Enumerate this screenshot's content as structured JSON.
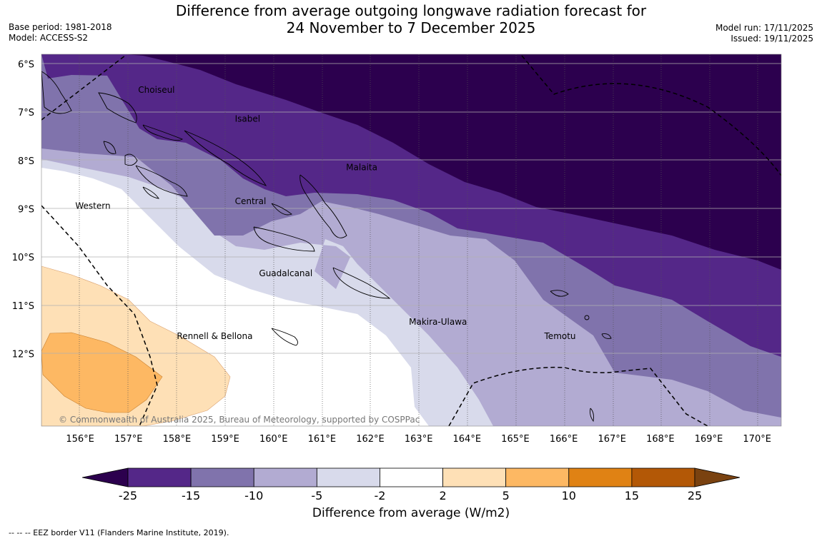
{
  "title_line1": "Difference from average outgoing longwave radiation forecast for",
  "title_line2": "24 November to 7 December 2025",
  "base_period": "Base period: 1981-2018",
  "model": "Model: ACCESS-S2",
  "model_run": "Model run: 17/11/2025",
  "issued": "Issued: 19/11/2025",
  "copyright": "© Commonwealth of Australia 2025, Bureau of Meteorology, supported by COSPPac",
  "map": {
    "lon_range": [
      155.2,
      170.5
    ],
    "lat_range": [
      -5.8,
      -13.5
    ],
    "lat_ticks": [
      {
        "value": -6,
        "label": "6°S"
      },
      {
        "value": -7,
        "label": "7°S"
      },
      {
        "value": -8,
        "label": "8°S"
      },
      {
        "value": -9,
        "label": "9°S"
      },
      {
        "value": -10,
        "label": "10°S"
      },
      {
        "value": -11,
        "label": "11°S"
      },
      {
        "value": -12,
        "label": "12°S"
      }
    ],
    "lon_ticks": [
      {
        "value": 156,
        "label": "156°E"
      },
      {
        "value": 157,
        "label": "157°E"
      },
      {
        "value": 158,
        "label": "158°E"
      },
      {
        "value": 159,
        "label": "159°E"
      },
      {
        "value": 160,
        "label": "160°E"
      },
      {
        "value": 161,
        "label": "161°E"
      },
      {
        "value": 162,
        "label": "162°E"
      },
      {
        "value": 163,
        "label": "163°E"
      },
      {
        "value": 164,
        "label": "164°E"
      },
      {
        "value": 165,
        "label": "165°E"
      },
      {
        "value": 166,
        "label": "166°E"
      },
      {
        "value": 167,
        "label": "167°E"
      },
      {
        "value": 168,
        "label": "168°E"
      },
      {
        "value": 169,
        "label": "169°E"
      },
      {
        "value": 170,
        "label": "170°E"
      }
    ],
    "provinces": [
      {
        "name": "Choiseul",
        "lon": 157.2,
        "lat": -6.6
      },
      {
        "name": "Isabel",
        "lon": 159.2,
        "lat": -7.2
      },
      {
        "name": "Malaita",
        "lon": 161.5,
        "lat": -8.2
      },
      {
        "name": "Central",
        "lon": 159.2,
        "lat": -8.9
      },
      {
        "name": "Western",
        "lon": 155.9,
        "lat": -9.0
      },
      {
        "name": "Guadalcanal",
        "lon": 159.7,
        "lat": -10.4
      },
      {
        "name": "Makira-Ulawa",
        "lon": 162.8,
        "lat": -11.4
      },
      {
        "name": "Rennell & Bellona",
        "lon": 158.0,
        "lat": -11.7
      },
      {
        "name": "Temotu",
        "lon": 165.6,
        "lat": -11.7
      }
    ]
  },
  "colorbar": {
    "title": "Difference from average (W/m2)",
    "boundaries": [
      "-25",
      "-15",
      "-10",
      "-5",
      "-2",
      "2",
      "5",
      "10",
      "15",
      "25"
    ],
    "under_color": "#2c004e",
    "over_color": "#7a4210",
    "colors": [
      "#542788",
      "#8073ac",
      "#b2abd2",
      "#d8daeb",
      "#ffffff",
      "#fee0b6",
      "#fdb863",
      "#e08214",
      "#b35806"
    ]
  },
  "eez_note": "-- -- -- EEZ border V11 (Flanders Marine Institute, 2019)."
}
